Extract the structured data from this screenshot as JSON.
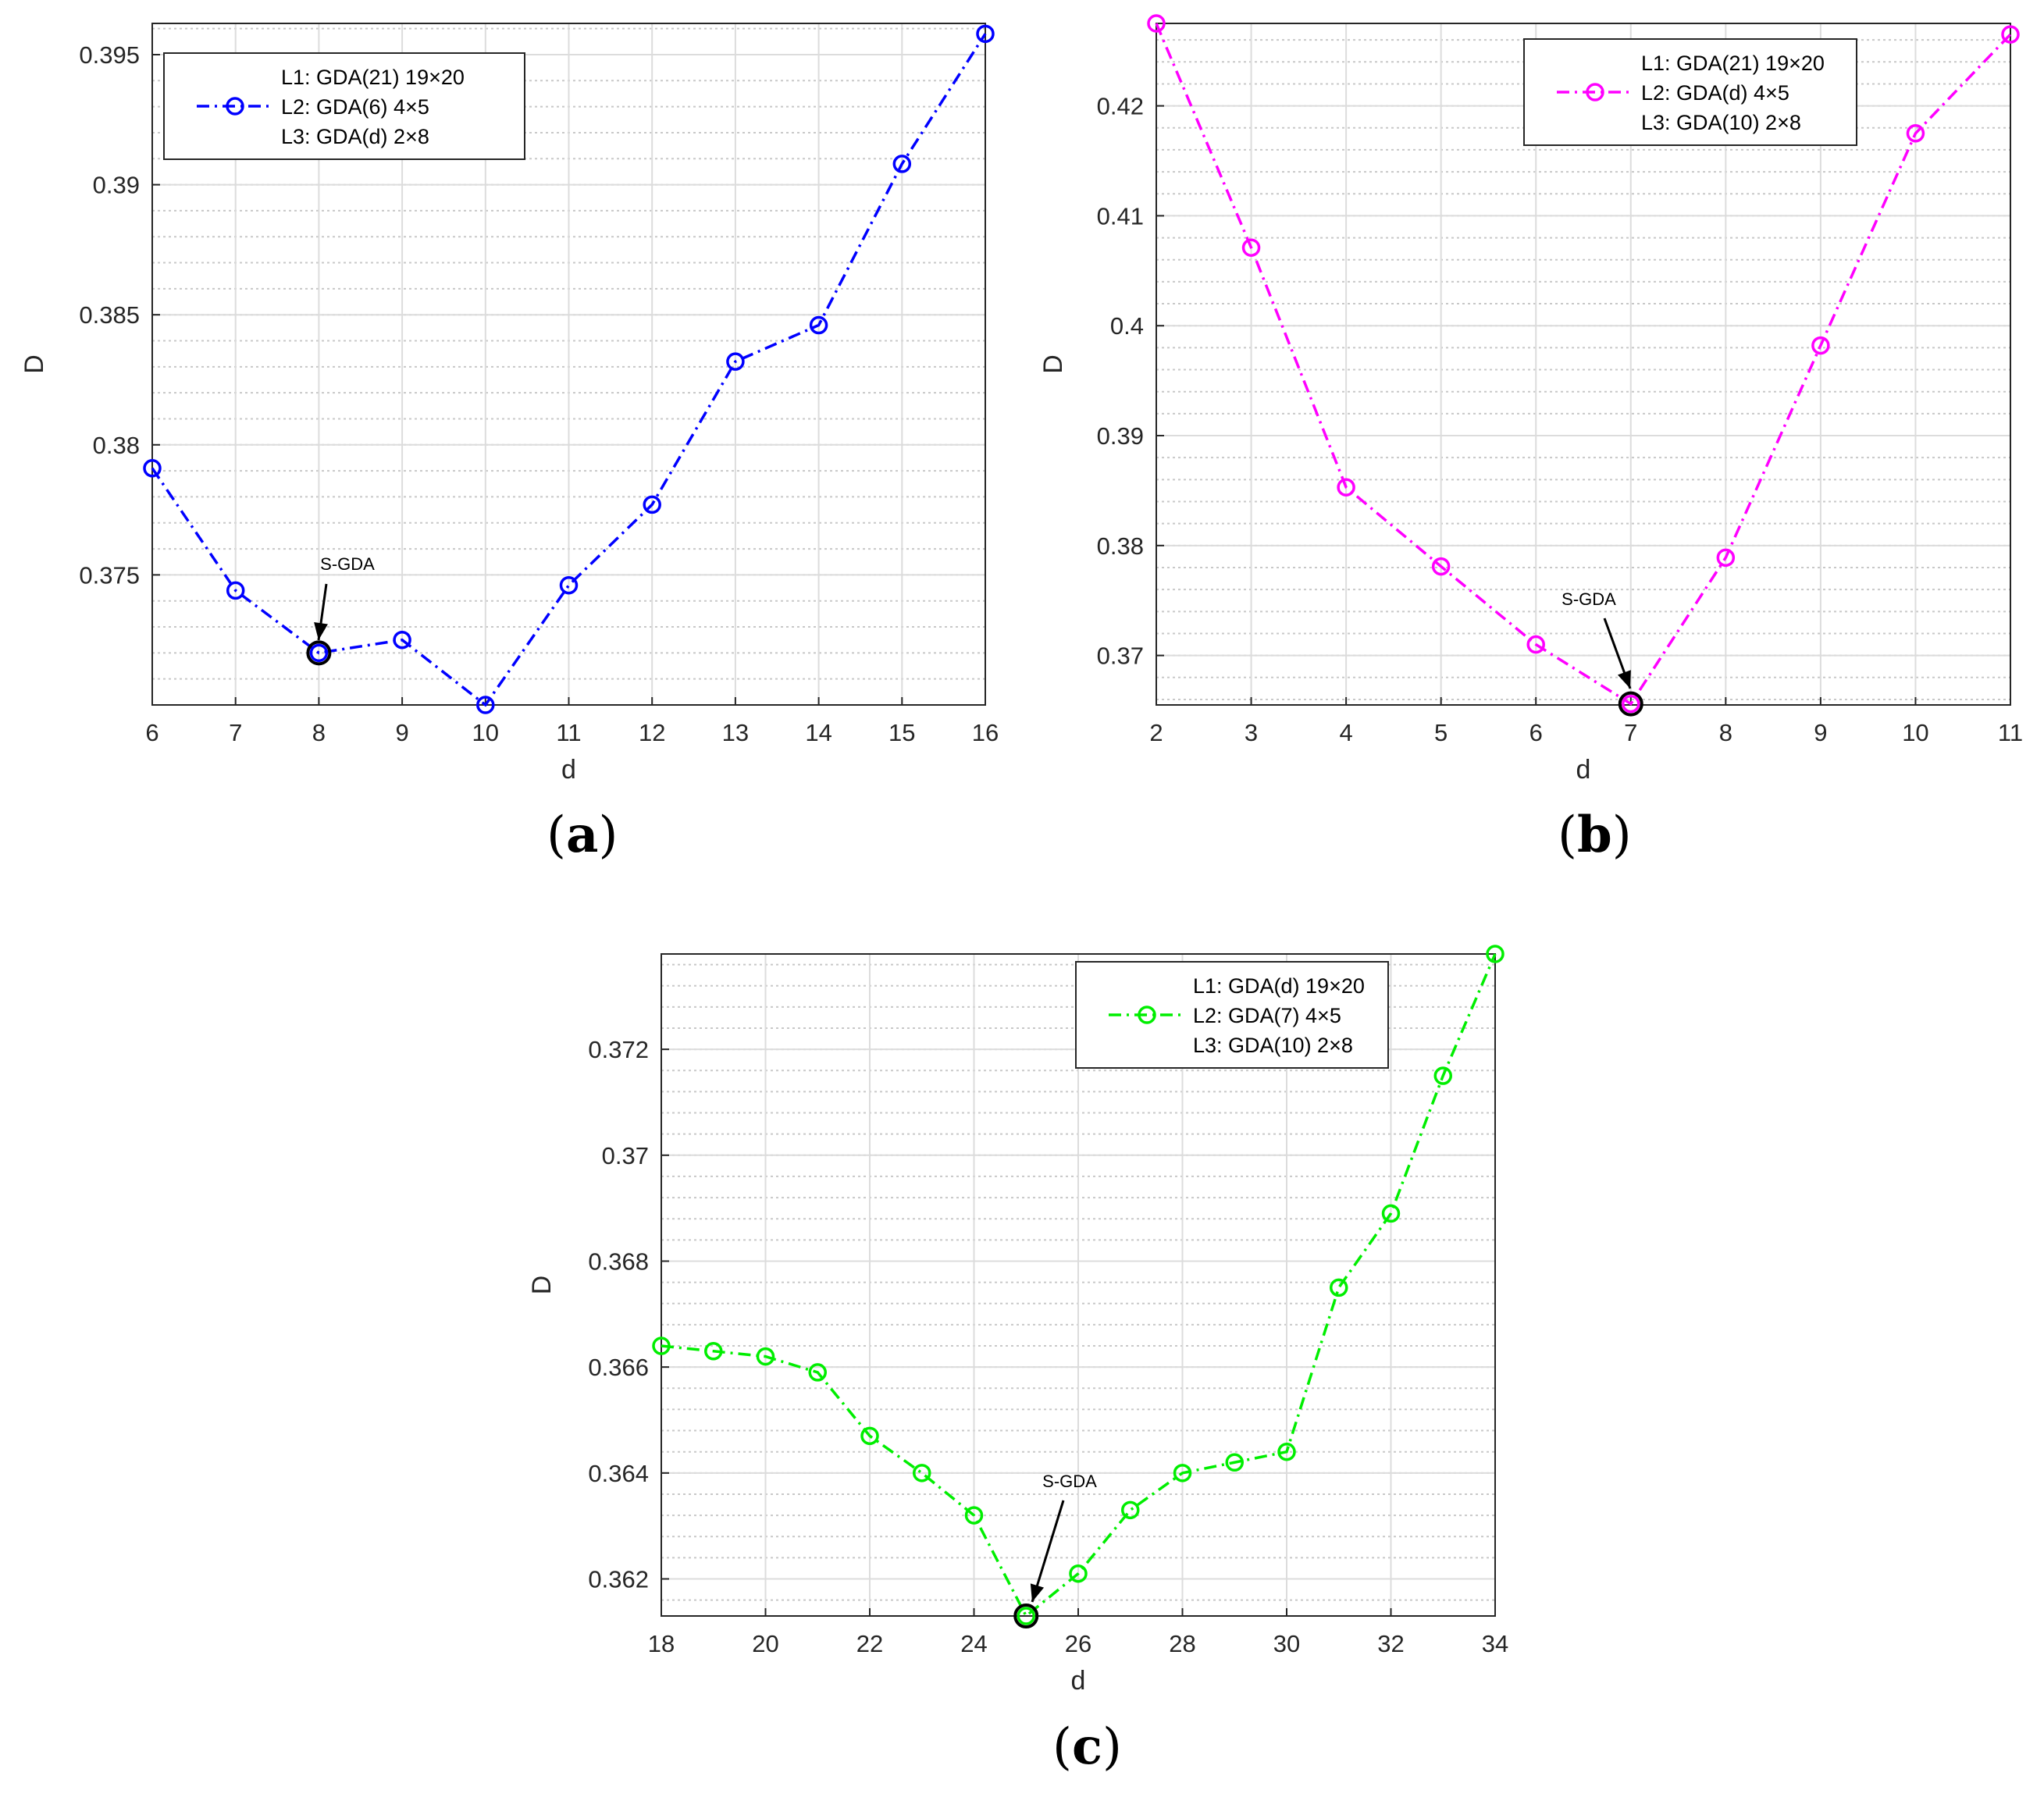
{
  "figure": {
    "captions": [
      {
        "open": "(",
        "letter": "a",
        "close": ")"
      },
      {
        "open": "(",
        "letter": "b",
        "close": ")"
      },
      {
        "open": "(",
        "letter": "c",
        "close": ")"
      }
    ]
  },
  "chart_data": [
    {
      "type": "line",
      "panel": "a",
      "xlabel": "d",
      "ylabel": "D",
      "xlim": [
        6,
        16
      ],
      "ylim": [
        0.37,
        0.3962
      ],
      "xticks": [
        6,
        7,
        8,
        9,
        10,
        11,
        12,
        13,
        14,
        15,
        16
      ],
      "yticks": [
        0.375,
        0.38,
        0.385,
        0.39,
        0.395
      ],
      "ytick_labels": [
        "0.375",
        "0.38",
        "0.385",
        "0.39",
        "0.395"
      ],
      "series": [
        {
          "name": "L2: GDA(6) 4×5",
          "color": "#0000ff",
          "x": [
            6,
            7,
            8,
            9,
            10,
            11,
            12,
            13,
            14,
            15,
            16
          ],
          "values": [
            0.3791,
            0.3744,
            0.372,
            0.3725,
            0.37,
            0.3746,
            0.3777,
            0.3832,
            0.3846,
            0.3908,
            0.3958
          ]
        }
      ],
      "legend": {
        "position": "top-left",
        "entries": [
          "L1: GDA(21) 19×20",
          "L2: GDA(6) 4×5",
          "L3: GDA(d) 2×8"
        ]
      },
      "annotation": {
        "text": "S-GDA",
        "x": 8,
        "y": 0.372
      }
    },
    {
      "type": "line",
      "panel": "b",
      "xlabel": "d",
      "ylabel": "D",
      "xlim": [
        2,
        11
      ],
      "ylim": [
        0.3655,
        0.4275
      ],
      "xticks": [
        2,
        3,
        4,
        5,
        6,
        7,
        8,
        9,
        10,
        11
      ],
      "yticks": [
        0.37,
        0.38,
        0.39,
        0.4,
        0.41,
        0.42
      ],
      "ytick_labels": [
        "0.37",
        "0.38",
        "0.39",
        "0.4",
        "0.41",
        "0.42"
      ],
      "series": [
        {
          "name": "L2: GDA(d) 4×5",
          "color": "#ff00ff",
          "x": [
            2,
            3,
            4,
            5,
            6,
            7,
            8,
            9,
            10,
            11
          ],
          "values": [
            0.4275,
            0.4071,
            0.3853,
            0.3781,
            0.371,
            0.3656,
            0.3789,
            0.3982,
            0.4175,
            0.4265
          ]
        }
      ],
      "legend": {
        "position": "top-right",
        "entries": [
          "L1: GDA(21) 19×20",
          "L2: GDA(d) 4×5",
          "L3: GDA(10) 2×8"
        ]
      },
      "annotation": {
        "text": "S-GDA",
        "x": 7,
        "y": 0.3656
      }
    },
    {
      "type": "line",
      "panel": "c",
      "xlabel": "d",
      "ylabel": "D",
      "xlim": [
        18,
        34
      ],
      "ylim": [
        0.3613,
        0.3738
      ],
      "xticks": [
        18,
        20,
        22,
        24,
        26,
        28,
        30,
        32,
        34
      ],
      "yticks": [
        0.362,
        0.364,
        0.366,
        0.368,
        0.37,
        0.372
      ],
      "ytick_labels": [
        "0.362",
        "0.364",
        "0.366",
        "0.368",
        "0.37",
        "0.372"
      ],
      "series": [
        {
          "name": "L2: GDA(7)    4×5",
          "color": "#00ee00",
          "x": [
            18,
            19,
            20,
            21,
            22,
            23,
            24,
            25,
            26,
            27,
            28,
            29,
            30,
            31,
            32,
            33,
            34
          ],
          "values": [
            0.3664,
            0.3663,
            0.3662,
            0.3659,
            0.3647,
            0.364,
            0.3632,
            0.3613,
            0.3621,
            0.3633,
            0.364,
            0.3642,
            0.3644,
            0.3675,
            0.3689,
            0.3715,
            0.3738
          ]
        }
      ],
      "legend": {
        "position": "top-right",
        "entries": [
          "L1: GDA(d) 19×20",
          "L2: GDA(7)    4×5",
          "L3:  GDA(10)  2×8"
        ]
      },
      "annotation": {
        "text": "S-GDA",
        "x": 25,
        "y": 0.3613
      }
    }
  ]
}
